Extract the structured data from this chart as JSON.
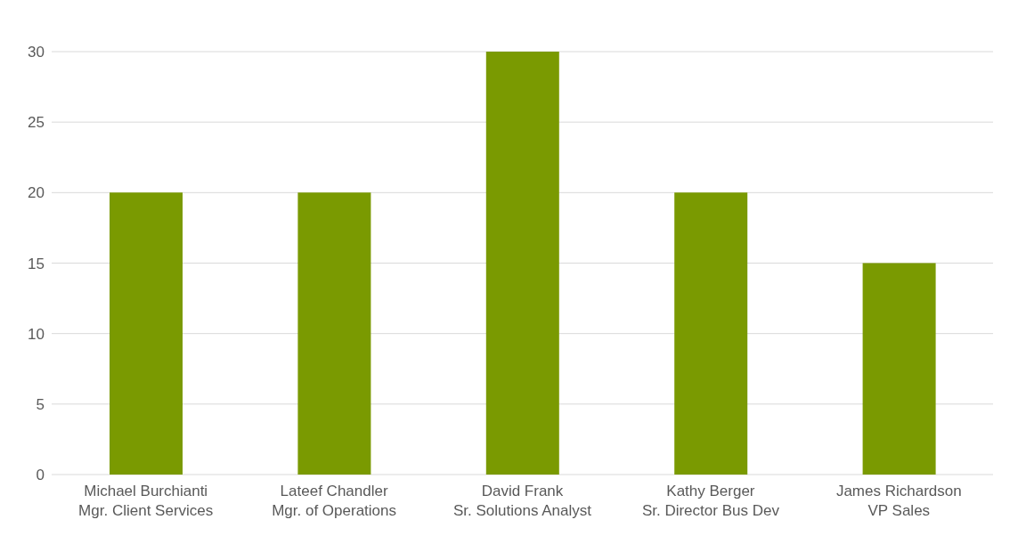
{
  "chart_data": {
    "type": "bar",
    "categories": [
      "Michael Burchianti\nMgr. Client Services",
      "Lateef Chandler\nMgr. of Operations",
      "David Frank\nSr. Solutions Analyst",
      "Kathy Berger\nSr. Director Bus Dev",
      "James Richardson\nVP Sales"
    ],
    "values": [
      20,
      20,
      30,
      20,
      15
    ],
    "color": "#7a9a01",
    "ylim": [
      0,
      30
    ],
    "yticks": [
      0,
      5,
      10,
      15,
      20,
      25,
      30
    ],
    "grid": "y"
  }
}
